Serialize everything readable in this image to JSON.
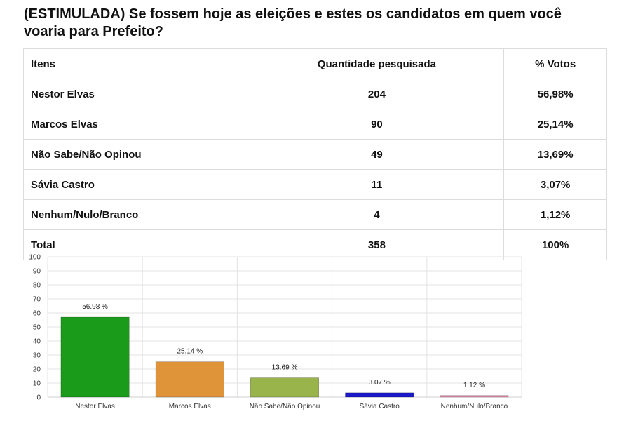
{
  "title": "(ESTIMULADA) Se fossem hoje as eleições e estes os candidatos em quem você voaria para Prefeito?",
  "table": {
    "headers": [
      "Itens",
      "Quantidade pesquisada",
      "% Votos"
    ],
    "rows": [
      {
        "item": "Nestor Elvas",
        "qty": "204",
        "pct": "56,98%"
      },
      {
        "item": "Marcos Elvas",
        "qty": "90",
        "pct": "25,14%"
      },
      {
        "item": "Não Sabe/Não Opinou",
        "qty": "49",
        "pct": "13,69%"
      },
      {
        "item": "Sávia Castro",
        "qty": "11",
        "pct": "3,07%"
      },
      {
        "item": "Nenhum/Nulo/Branco",
        "qty": "4",
        "pct": "1,12%"
      },
      {
        "item": "Total",
        "qty": "358",
        "pct": "100%"
      }
    ]
  },
  "chart_data": {
    "type": "bar",
    "title": "",
    "xlabel": "",
    "ylabel": "",
    "categories": [
      "Nestor Elvas",
      "Marcos Elvas",
      "Não Sabe/Não Opinou",
      "Sávia Castro",
      "Nenhum/Nulo/Branco"
    ],
    "values": [
      56.98,
      25.14,
      13.69,
      3.07,
      1.12
    ],
    "data_labels": [
      "56.98 %",
      "25.14 %",
      "13.69 %",
      "3.07 %",
      "1.12 %"
    ],
    "colors": [
      "#1a9b1a",
      "#e0943a",
      "#98b44a",
      "#1a1acc",
      "#e98aab"
    ],
    "ylim": [
      0,
      100
    ],
    "yticks": [
      0,
      10,
      20,
      30,
      40,
      50,
      60,
      70,
      80,
      90,
      100
    ],
    "grid": true,
    "legend": "none"
  }
}
